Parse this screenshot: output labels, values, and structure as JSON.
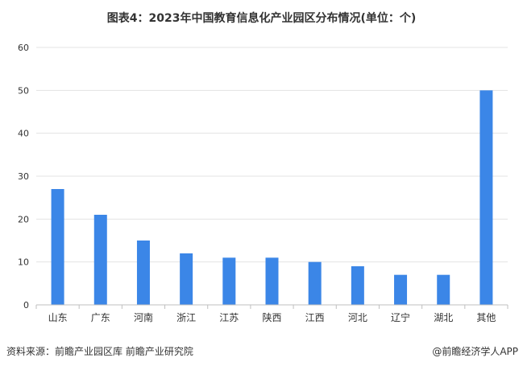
{
  "title": "图表4：2023年中国教育信息化产业园区分布情况(单位：个)",
  "footer": {
    "source": "资料来源：前瞻产业园区库 前瞻产业研究院",
    "brand": "@前瞻经济学人APP"
  },
  "chart_data": {
    "type": "bar",
    "categories": [
      "山东",
      "广东",
      "河南",
      "浙江",
      "江苏",
      "陕西",
      "江西",
      "河北",
      "辽宁",
      "湖北",
      "其他"
    ],
    "values": [
      27,
      21,
      15,
      12,
      11,
      11,
      10,
      9,
      7,
      7,
      50
    ],
    "ylim": [
      0,
      60
    ],
    "yticks": [
      0,
      10,
      20,
      30,
      40,
      50,
      60
    ],
    "bar_color": "#3b86e7",
    "grid": true,
    "legend": "none"
  }
}
